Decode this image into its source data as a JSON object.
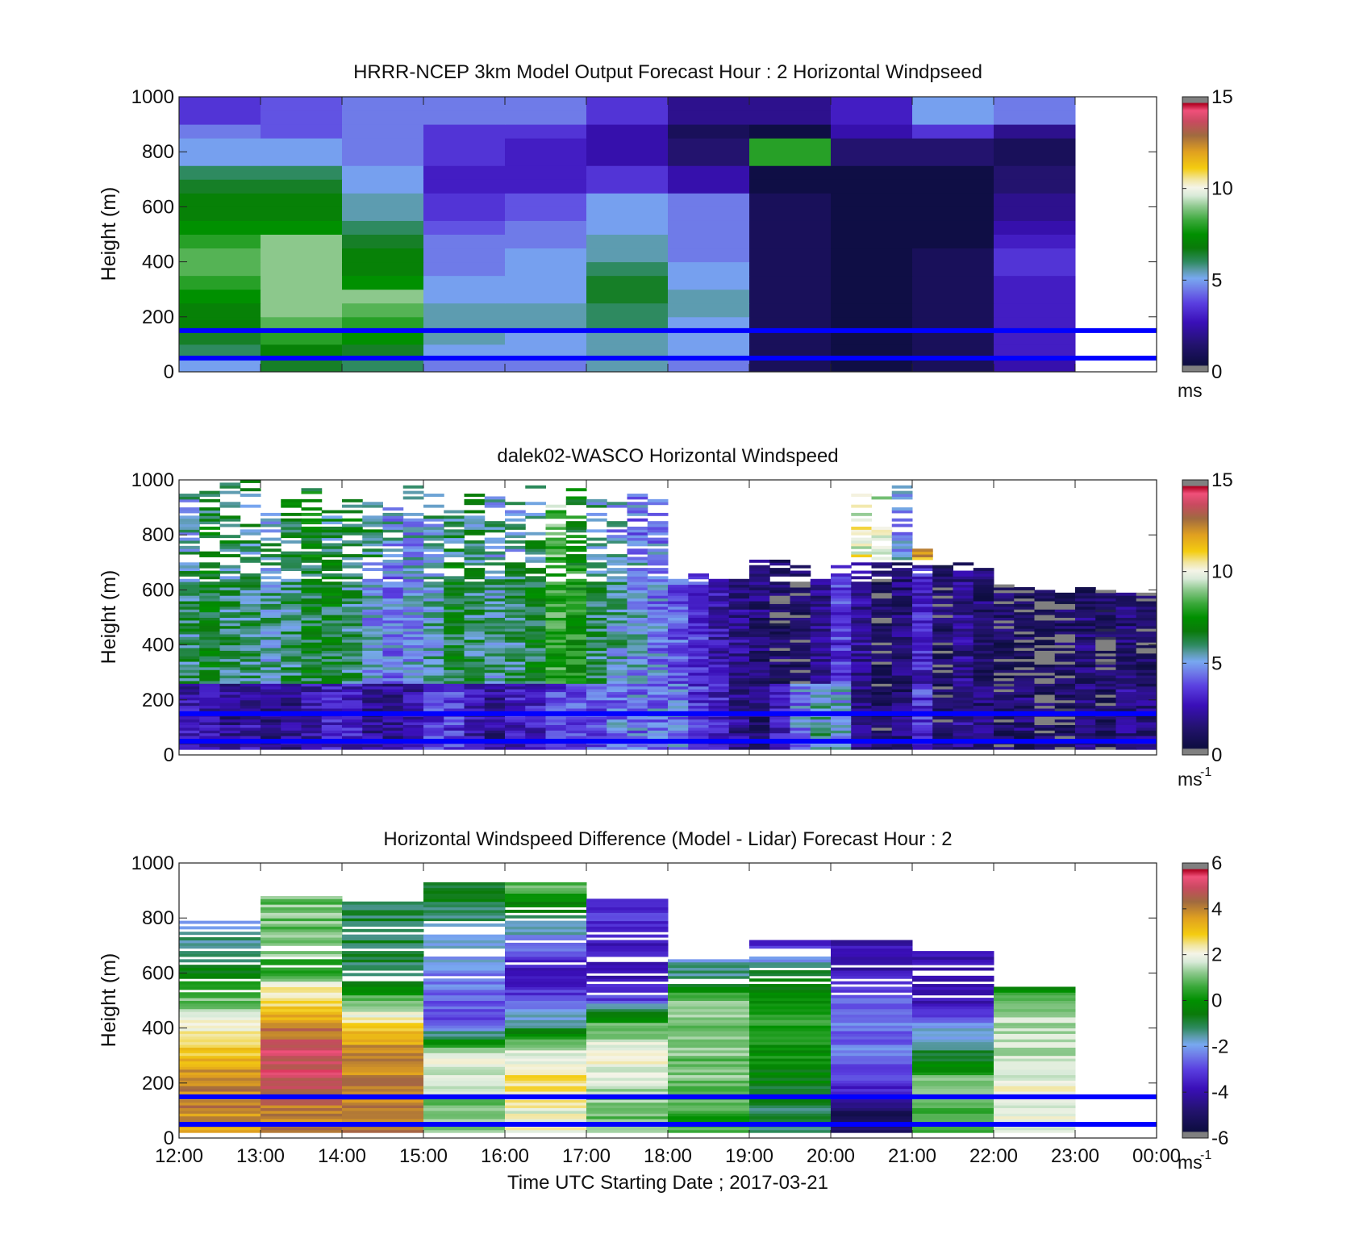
{
  "figure": {
    "xlabel": "Time UTC  Starting Date ; 2017-03-21",
    "x_ticks": [
      "12:00",
      "13:00",
      "14:00",
      "15:00",
      "16:00",
      "17:00",
      "18:00",
      "19:00",
      "20:00",
      "21:00",
      "22:00",
      "23:00",
      "00:00"
    ],
    "overlay_lines_m": [
      50,
      150
    ],
    "overlay_line_color": "#0000ff"
  },
  "chart_data": [
    {
      "type": "heatmap",
      "title": "HRRR-NCEP 3km Model Output   Forecast Hour : 2 Horizontal Windpseed",
      "ylabel": "Height (m)",
      "ylim": [
        0,
        1000
      ],
      "y_ticks": [
        "0",
        "200",
        "400",
        "600",
        "800",
        "1000"
      ],
      "x_ticks": [
        "12:00",
        "13:00",
        "14:00",
        "15:00",
        "16:00",
        "17:00",
        "18:00",
        "19:00",
        "20:00",
        "21:00",
        "22:00",
        "23:00",
        "00:00"
      ],
      "colorbar": {
        "min": 0,
        "max": 15,
        "ticks": [
          "0",
          "5",
          "10",
          "15"
        ],
        "unit": "ms",
        "unit_sup": ""
      },
      "time_bins": [
        "12:00",
        "13:00",
        "14:00",
        "15:00",
        "16:00",
        "17:00",
        "18:00",
        "19:00",
        "20:00",
        "21:00",
        "22:00"
      ],
      "height_levels_m": [
        25,
        75,
        125,
        175,
        225,
        275,
        325,
        375,
        425,
        475,
        525,
        575,
        625,
        675,
        725,
        775,
        825,
        875,
        925,
        975
      ],
      "values": [
        [
          5.0,
          6.5,
          6.0,
          4.5,
          4.5,
          5.5,
          4.5,
          1.0,
          0.5,
          1.0,
          2.5
        ],
        [
          6.0,
          7.0,
          6.5,
          5.0,
          5.0,
          5.5,
          5.0,
          1.0,
          0.5,
          1.0,
          3.0
        ],
        [
          6.5,
          8.0,
          7.5,
          5.5,
          5.0,
          5.5,
          5.0,
          1.0,
          0.5,
          1.0,
          3.0
        ],
        [
          7.0,
          8.5,
          8.0,
          5.5,
          5.5,
          6.0,
          5.0,
          1.0,
          0.5,
          1.0,
          3.0
        ],
        [
          7.0,
          9.0,
          8.5,
          5.5,
          5.5,
          6.0,
          5.5,
          1.0,
          0.5,
          1.0,
          3.0
        ],
        [
          7.5,
          9.0,
          9.0,
          5.0,
          5.0,
          6.5,
          5.5,
          1.0,
          0.5,
          1.0,
          3.0
        ],
        [
          8.0,
          9.0,
          7.5,
          5.0,
          5.0,
          6.5,
          5.0,
          1.0,
          0.5,
          1.0,
          3.0
        ],
        [
          8.5,
          9.0,
          7.0,
          4.5,
          5.0,
          6.0,
          5.0,
          1.0,
          0.5,
          1.0,
          3.5
        ],
        [
          8.5,
          9.0,
          7.0,
          4.5,
          5.0,
          5.5,
          4.5,
          1.0,
          0.5,
          1.0,
          3.5
        ],
        [
          8.0,
          9.0,
          6.5,
          4.5,
          4.5,
          5.5,
          4.5,
          1.0,
          0.5,
          0.5,
          3.0
        ],
        [
          7.5,
          7.5,
          6.0,
          4.0,
          4.5,
          5.0,
          4.5,
          1.0,
          0.5,
          0.5,
          2.5
        ],
        [
          7.0,
          7.0,
          5.5,
          3.5,
          4.0,
          5.0,
          4.5,
          1.0,
          0.5,
          0.5,
          2.0
        ],
        [
          7.0,
          7.0,
          5.5,
          3.5,
          4.0,
          5.0,
          4.5,
          1.0,
          0.5,
          0.5,
          2.0
        ],
        [
          6.5,
          6.5,
          5.0,
          3.0,
          3.0,
          3.5,
          2.5,
          0.5,
          0.5,
          0.5,
          1.5
        ],
        [
          6.0,
          6.0,
          5.0,
          3.0,
          3.0,
          3.5,
          2.5,
          0.5,
          0.5,
          0.5,
          1.5
        ],
        [
          5.0,
          5.0,
          4.5,
          3.5,
          3.0,
          2.5,
          1.5,
          8.0,
          1.5,
          1.5,
          1.0
        ],
        [
          5.0,
          5.0,
          4.5,
          3.5,
          3.0,
          2.5,
          1.5,
          8.0,
          1.5,
          1.5,
          1.0
        ],
        [
          4.5,
          4.0,
          4.5,
          3.5,
          3.5,
          2.5,
          1.0,
          0.5,
          2.5,
          3.5,
          2.0
        ],
        [
          3.5,
          4.0,
          4.5,
          4.5,
          4.5,
          3.5,
          2.0,
          2.0,
          3.0,
          5.0,
          4.5
        ],
        [
          3.5,
          4.0,
          4.5,
          4.5,
          4.5,
          3.5,
          2.0,
          2.0,
          3.0,
          5.0,
          4.5
        ]
      ]
    },
    {
      "type": "heatmap",
      "title": "dalek02-WASCO  Horizontal Windspeed",
      "ylabel": "Height (m)",
      "ylim": [
        0,
        1000
      ],
      "y_ticks": [
        "0",
        "200",
        "400",
        "600",
        "800",
        "1000"
      ],
      "x_ticks": [
        "12:00",
        "13:00",
        "14:00",
        "15:00",
        "16:00",
        "17:00",
        "18:00",
        "19:00",
        "20:00",
        "21:00",
        "22:00",
        "23:00",
        "00:00"
      ],
      "colorbar": {
        "min": 0,
        "max": 15,
        "ticks": [
          "0",
          "5",
          "10",
          "15"
        ],
        "unit": "ms",
        "unit_sup": "-1"
      },
      "time_bins": [
        "12:00",
        "12:15",
        "12:30",
        "12:45",
        "13:00",
        "13:15",
        "13:30",
        "13:45",
        "14:00",
        "14:15",
        "14:30",
        "14:45",
        "15:00",
        "15:15",
        "15:30",
        "15:45",
        "16:00",
        "16:15",
        "16:30",
        "16:45",
        "17:00",
        "17:15",
        "17:30",
        "17:45",
        "18:00",
        "18:15",
        "18:30",
        "18:45",
        "19:00",
        "19:15",
        "19:30",
        "19:45",
        "20:00",
        "20:15",
        "20:30",
        "20:45",
        "21:00",
        "21:15",
        "21:30",
        "21:45",
        "22:00",
        "22:15",
        "22:30",
        "22:45",
        "23:00",
        "23:15",
        "23:30",
        "23:45"
      ],
      "profile_top_m": [
        980,
        960,
        1000,
        1000,
        900,
        950,
        980,
        900,
        930,
        930,
        900,
        1000,
        950,
        900,
        950,
        950,
        920,
        1000,
        920,
        980,
        950,
        980,
        950,
        940,
        640,
        660,
        650,
        640,
        710,
        710,
        690,
        650,
        690,
        960,
        960,
        1000,
        750,
        690,
        700,
        690,
        620,
        610,
        600,
        590,
        610,
        600,
        590,
        590
      ],
      "low_level_mean_ms": [
        2.5,
        2.5,
        2.0,
        2.5,
        2.0,
        2.0,
        2.5,
        3.0,
        3.0,
        2.0,
        2.0,
        2.5,
        3.5,
        3.5,
        2.5,
        2.0,
        3.0,
        3.0,
        3.5,
        4.0,
        4.0,
        4.5,
        4.5,
        4.5,
        4.5,
        3.5,
        3.0,
        2.0,
        1.5,
        3.0,
        4.5,
        5.5,
        5.0,
        2.0,
        1.0,
        1.5,
        3.5,
        1.0,
        2.0,
        1.5,
        1.0,
        1.5,
        1.0,
        1.0,
        1.5,
        1.0,
        2.0,
        1.5
      ],
      "mid_level_mean_ms": [
        6.0,
        6.5,
        6.0,
        6.0,
        5.5,
        6.0,
        6.5,
        6.5,
        6.0,
        5.0,
        4.5,
        5.0,
        5.5,
        6.5,
        6.0,
        5.5,
        6.0,
        6.5,
        8.0,
        7.5,
        6.0,
        5.5,
        5.0,
        4.5,
        4.0,
        3.5,
        2.5,
        2.0,
        1.5,
        1.0,
        1.0,
        2.0,
        3.5,
        2.0,
        1.0,
        1.5,
        3.0,
        1.0,
        2.0,
        1.5,
        1.0,
        1.0,
        0.5,
        1.0,
        1.5,
        1.0,
        1.5,
        1.0
      ],
      "upper_level_mean_ms": [
        5.5,
        6.5,
        6.5,
        6.0,
        5.5,
        6.5,
        7.0,
        6.0,
        6.5,
        6.0,
        5.0,
        5.0,
        5.5,
        6.0,
        6.0,
        5.5,
        5.5,
        6.0,
        8.5,
        7.0,
        5.5,
        5.0,
        4.5,
        4.5,
        4.0,
        3.5,
        3.0,
        2.0,
        1.5,
        1.0,
        1.0,
        2.0,
        5.0,
        10.0,
        9.5,
        5.0,
        12.0,
        2.0,
        3.0,
        1.5,
        1.0,
        1.0,
        1.0,
        1.0,
        1.5,
        1.0,
        1.5,
        1.0
      ]
    },
    {
      "type": "heatmap",
      "title": "Horizontal Windspeed Difference (Model - Lidar) Forecast Hour : 2",
      "ylabel": "Height (m)",
      "xlabel": "Time UTC  Starting Date ; 2017-03-21",
      "ylim": [
        0,
        1000
      ],
      "y_ticks": [
        "0",
        "200",
        "400",
        "600",
        "800",
        "1000"
      ],
      "x_ticks": [
        "12:00",
        "13:00",
        "14:00",
        "15:00",
        "16:00",
        "17:00",
        "18:00",
        "19:00",
        "20:00",
        "21:00",
        "22:00",
        "23:00",
        "00:00"
      ],
      "colorbar": {
        "min": -6,
        "max": 6,
        "ticks": [
          "-6",
          "-4",
          "-2",
          "0",
          "2",
          "4",
          "6"
        ],
        "unit": "ms",
        "unit_sup": "-1"
      },
      "time_bins": [
        "12:00",
        "13:00",
        "14:00",
        "15:00",
        "16:00",
        "17:00",
        "18:00",
        "19:00",
        "20:00",
        "21:00",
        "22:00"
      ],
      "profile_top_m": [
        790,
        880,
        860,
        930,
        930,
        870,
        650,
        720,
        720,
        680,
        550
      ],
      "profiles": [
        [
          [
            0,
            3
          ],
          [
            100,
            4
          ],
          [
            200,
            4
          ],
          [
            300,
            3
          ],
          [
            400,
            2
          ],
          [
            500,
            1
          ],
          [
            560,
            0
          ],
          [
            650,
            -1
          ],
          [
            800,
            -2
          ]
        ],
        [
          [
            0,
            4
          ],
          [
            100,
            4
          ],
          [
            200,
            5
          ],
          [
            300,
            5
          ],
          [
            400,
            4
          ],
          [
            450,
            3
          ],
          [
            550,
            2
          ],
          [
            620,
            0
          ],
          [
            650,
            1
          ]
        ],
        [
          [
            0,
            4
          ],
          [
            100,
            4
          ],
          [
            200,
            4
          ],
          [
            300,
            4
          ],
          [
            400,
            3
          ],
          [
            450,
            2
          ],
          [
            500,
            1
          ],
          [
            560,
            -1
          ]
        ],
        [
          [
            0,
            1
          ],
          [
            100,
            1
          ],
          [
            200,
            1.5
          ],
          [
            300,
            2
          ],
          [
            350,
            -0.5
          ],
          [
            430,
            -3
          ],
          [
            930,
            -0.5
          ]
        ],
        [
          [
            0,
            2
          ],
          [
            100,
            2
          ],
          [
            200,
            2.5
          ],
          [
            300,
            2
          ],
          [
            400,
            -1
          ],
          [
            500,
            -3
          ],
          [
            600,
            -4
          ],
          [
            930,
            1
          ]
        ],
        [
          [
            0,
            1
          ],
          [
            100,
            1
          ],
          [
            200,
            1.5
          ],
          [
            300,
            2
          ],
          [
            400,
            1
          ],
          [
            450,
            -0.5
          ],
          [
            500,
            -3
          ],
          [
            600,
            -4
          ],
          [
            870,
            -3
          ]
        ],
        [
          [
            0,
            0.5
          ],
          [
            100,
            0.5
          ],
          [
            200,
            1
          ],
          [
            300,
            1
          ],
          [
            400,
            1
          ],
          [
            500,
            1
          ],
          [
            560,
            -1
          ],
          [
            650,
            -2
          ]
        ],
        [
          [
            0,
            -1
          ],
          [
            100,
            -1
          ],
          [
            200,
            -0.5
          ],
          [
            300,
            0
          ],
          [
            400,
            0.5
          ],
          [
            500,
            0
          ],
          [
            600,
            -1
          ],
          [
            720,
            -4
          ]
        ],
        [
          [
            0,
            -5
          ],
          [
            100,
            -5
          ],
          [
            200,
            -3
          ],
          [
            300,
            -2.5
          ],
          [
            400,
            -2.5
          ],
          [
            500,
            -2.5
          ],
          [
            600,
            -4
          ],
          [
            720,
            -4
          ]
        ],
        [
          [
            0,
            0.5
          ],
          [
            100,
            0.5
          ],
          [
            200,
            1
          ],
          [
            300,
            -1
          ],
          [
            400,
            -2
          ],
          [
            480,
            -4
          ]
        ],
        [
          [
            0,
            2
          ],
          [
            100,
            2
          ],
          [
            200,
            2
          ],
          [
            300,
            1.5
          ],
          [
            400,
            1.5
          ],
          [
            500,
            1
          ],
          [
            550,
            -1
          ]
        ]
      ]
    }
  ]
}
